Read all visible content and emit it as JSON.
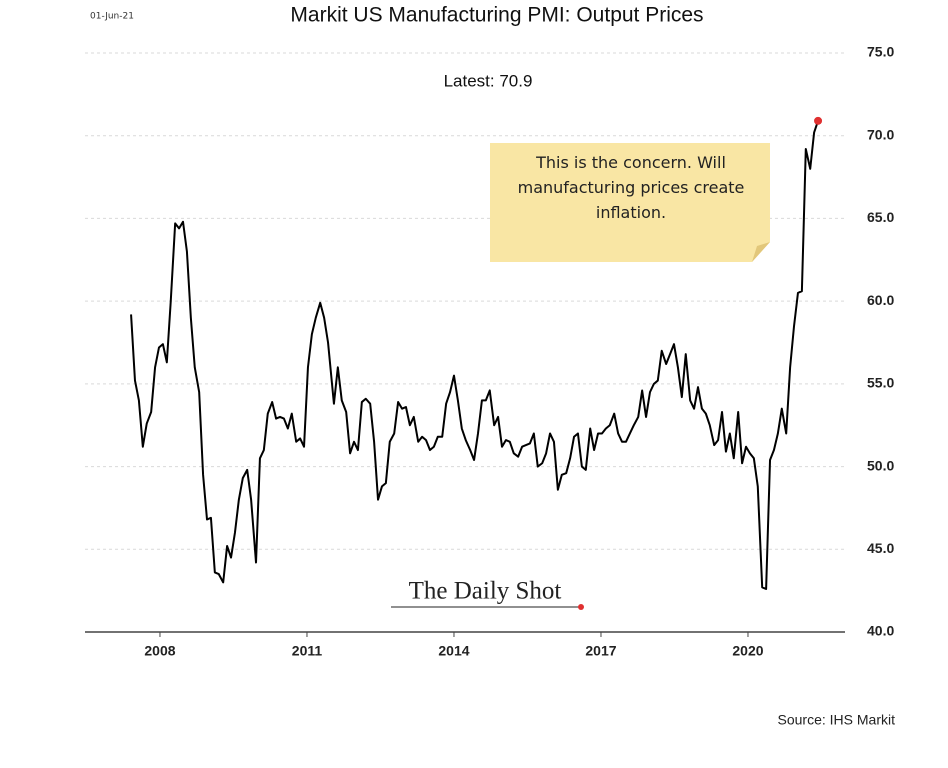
{
  "chart_data": {
    "type": "line",
    "date_stamp": "01-Jun-21",
    "title": "Markit US Manufacturing PMI: Output Prices",
    "subtitle": "Latest:  70.9",
    "annotation": "This is the concern. Will manufacturing prices create inflation.",
    "watermark": "The Daily Shot",
    "source": "Source: IHS Markit",
    "xlim": [
      2006.47,
      2021.98
    ],
    "xticks": [
      2008,
      2011,
      2014,
      2017,
      2020
    ],
    "ylim": [
      40,
      75
    ],
    "yticks": [
      {
        "value": 40,
        "label": "40.0"
      },
      {
        "value": 45,
        "label": "45.0"
      },
      {
        "value": 50,
        "label": "50.0"
      },
      {
        "value": 55,
        "label": "55.0"
      },
      {
        "value": 60,
        "label": "60.0"
      },
      {
        "value": 65,
        "label": "65.0"
      },
      {
        "value": 70,
        "label": "70.0"
      },
      {
        "value": 75,
        "label": "75.0"
      }
    ],
    "grid": true,
    "highlight_color": "#e03030",
    "x": [
      2007.41,
      2007.49,
      2007.57,
      2007.65,
      2007.73,
      2007.82,
      2007.9,
      2007.98,
      2008.06,
      2008.14,
      2008.22,
      2008.31,
      2008.39,
      2008.47,
      2008.55,
      2008.63,
      2008.71,
      2008.8,
      2008.88,
      2008.96,
      2009.04,
      2009.12,
      2009.2,
      2009.29,
      2009.37,
      2009.45,
      2009.53,
      2009.61,
      2009.69,
      2009.78,
      2009.86,
      2009.96,
      2010.04,
      2010.12,
      2010.2,
      2010.29,
      2010.37,
      2010.45,
      2010.53,
      2010.61,
      2010.69,
      2010.78,
      2010.86,
      2010.94,
      2011.02,
      2011.1,
      2011.18,
      2011.27,
      2011.35,
      2011.43,
      2011.55,
      2011.63,
      2011.71,
      2011.8,
      2011.88,
      2011.96,
      2012.04,
      2012.12,
      2012.2,
      2012.29,
      2012.37,
      2012.45,
      2012.53,
      2012.61,
      2012.69,
      2012.78,
      2012.86,
      2012.94,
      2013.02,
      2013.1,
      2013.18,
      2013.27,
      2013.35,
      2013.43,
      2013.51,
      2013.59,
      2013.67,
      2013.76,
      2013.84,
      2013.92,
      2014.0,
      2014.08,
      2014.16,
      2014.24,
      2014.33,
      2014.41,
      2014.49,
      2014.57,
      2014.65,
      2014.73,
      2014.82,
      2014.9,
      2014.98,
      2015.06,
      2015.14,
      2015.22,
      2015.31,
      2015.39,
      2015.47,
      2015.55,
      2015.63,
      2015.71,
      2015.8,
      2015.88,
      2015.96,
      2016.04,
      2016.12,
      2016.2,
      2016.29,
      2016.37,
      2016.45,
      2016.53,
      2016.61,
      2016.69,
      2016.78,
      2016.86,
      2016.94,
      2017.02,
      2017.1,
      2017.18,
      2017.27,
      2017.35,
      2017.43,
      2017.51,
      2017.59,
      2017.67,
      2017.76,
      2017.84,
      2017.92,
      2018.0,
      2018.08,
      2018.16,
      2018.24,
      2018.33,
      2018.41,
      2018.49,
      2018.57,
      2018.65,
      2018.73,
      2018.82,
      2018.9,
      2018.98,
      2019.06,
      2019.14,
      2019.22,
      2019.31,
      2019.39,
      2019.47,
      2019.55,
      2019.63,
      2019.71,
      2019.8,
      2019.88,
      2019.96,
      2020.04,
      2020.12,
      2020.2,
      2020.29,
      2020.37,
      2020.45,
      2020.53,
      2020.61,
      2020.69,
      2020.78,
      2020.86,
      2020.94,
      2021.02,
      2021.1,
      2021.18,
      2021.27,
      2021.35,
      2021.43
    ],
    "series": [
      {
        "name": "Output Prices",
        "color": "#000000",
        "values": [
          59.2,
          55.2,
          54,
          51.2,
          52.6,
          53.3,
          56,
          57.2,
          57.4,
          56.3,
          60,
          64.7,
          64.4,
          64.8,
          63,
          59,
          56,
          54.5,
          49.5,
          46.8,
          46.9,
          43.6,
          43.5,
          43,
          45.2,
          44.5,
          46,
          48,
          49.3,
          49.8,
          48,
          44.2,
          50.5,
          51,
          53.2,
          53.9,
          52.9,
          53,
          52.9,
          52.3,
          53.2,
          51.5,
          51.7,
          51.2,
          56,
          58,
          59,
          59.9,
          59,
          57.5,
          53.8,
          56,
          54,
          53.3,
          50.8,
          51.5,
          51,
          53.9,
          54.1,
          53.8,
          51.5,
          48,
          48.8,
          49,
          51.5,
          52,
          53.9,
          53.5,
          53.6,
          52.5,
          53,
          51.5,
          51.8,
          51.6,
          51,
          51.2,
          51.8,
          51.8,
          53.8,
          54.5,
          55.5,
          54,
          52.3,
          51.6,
          51,
          50.4,
          52,
          54,
          54,
          54.6,
          52.5,
          53,
          51.2,
          51.6,
          51.5,
          50.8,
          50.6,
          51.2,
          51.3,
          51.4,
          52,
          50,
          50.2,
          50.8,
          52,
          51.5,
          48.6,
          49.5,
          49.6,
          50.5,
          51.8,
          52,
          50,
          49.8,
          52.3,
          51,
          52,
          52,
          52.3,
          52.5,
          53.2,
          52,
          51.5,
          51.5,
          52,
          52.5,
          53,
          54.6,
          53,
          54.5,
          55,
          55.2,
          57,
          56.2,
          56.8,
          57.4,
          56,
          54.2,
          56.8,
          54,
          53.5,
          54.8,
          53.5,
          53.2,
          52.5,
          51.3,
          51.6,
          53.3,
          50.9,
          52,
          50.5,
          53.3,
          50.2,
          51.2,
          50.8,
          50.5,
          48.8,
          42.7,
          42.6,
          50.4,
          51,
          52,
          53.5,
          52,
          56,
          58.5,
          60.5,
          60.6,
          69.2,
          68,
          70.2,
          70.9
        ]
      }
    ]
  }
}
